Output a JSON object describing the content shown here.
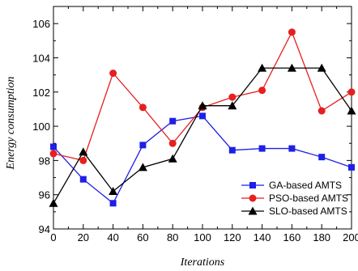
{
  "chart_data": {
    "type": "line",
    "xlabel": "Iterations",
    "ylabel": "Energy consumption",
    "xlim": [
      0,
      200
    ],
    "ylim": [
      94,
      107
    ],
    "xticks": [
      0,
      20,
      40,
      60,
      80,
      100,
      120,
      140,
      160,
      180,
      200
    ],
    "yticks": [
      94,
      96,
      98,
      100,
      102,
      104,
      106
    ],
    "legend_position": "bottom-right",
    "grid": false,
    "x": [
      0,
      20,
      40,
      60,
      80,
      100,
      120,
      140,
      160,
      180,
      200
    ],
    "series": [
      {
        "name": "GA-based AMTS",
        "color": "#1f1fe6",
        "marker": "square",
        "values": [
          98.8,
          96.9,
          95.5,
          98.9,
          100.3,
          100.6,
          98.6,
          98.7,
          98.7,
          98.2,
          97.6
        ]
      },
      {
        "name": "PSO-based AMTS",
        "color": "#e61f1f",
        "marker": "circle",
        "values": [
          98.4,
          98.0,
          103.1,
          101.1,
          99.0,
          101.1,
          101.7,
          102.1,
          105.5,
          100.9,
          102.0
        ]
      },
      {
        "name": "SLO-based AMTS",
        "color": "#000000",
        "marker": "triangle",
        "values": [
          95.5,
          98.5,
          96.2,
          97.6,
          98.1,
          101.2,
          101.2,
          103.4,
          103.4,
          103.4,
          100.9
        ]
      }
    ]
  }
}
